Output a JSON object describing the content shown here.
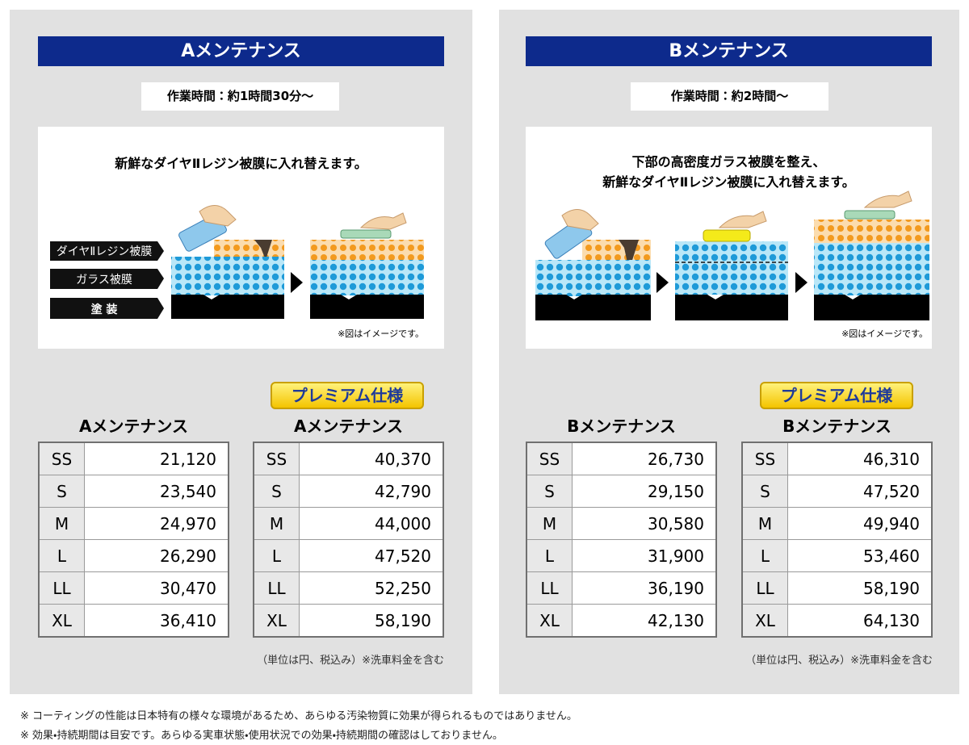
{
  "panels": [
    {
      "title": "Aメンテナンス",
      "time": "作業時間：約1時間30分～",
      "caption_lines": [
        "新鮮なダイヤⅡレジン被膜に入れ替えます。"
      ],
      "layer_labels": [
        "ダイヤⅡレジン被膜",
        "ガラス被膜",
        "塗 装"
      ],
      "image_note": "※図はイメージです。",
      "badge": "プレミアム仕様",
      "tables": [
        {
          "heading": "Aメンテナンス",
          "rows": [
            [
              "SS",
              "21,120"
            ],
            [
              "S",
              "23,540"
            ],
            [
              "M",
              "24,970"
            ],
            [
              "L",
              "26,290"
            ],
            [
              "LL",
              "30,470"
            ],
            [
              "XL",
              "36,410"
            ]
          ]
        },
        {
          "heading": "Aメンテナンス",
          "rows": [
            [
              "SS",
              "40,370"
            ],
            [
              "S",
              "42,790"
            ],
            [
              "M",
              "44,000"
            ],
            [
              "L",
              "47,520"
            ],
            [
              "LL",
              "52,250"
            ],
            [
              "XL",
              "58,190"
            ]
          ]
        }
      ],
      "unit_note": "（単位は円、税込み）※洗車料金を含む"
    },
    {
      "title": "Bメンテナンス",
      "time": "作業時間：約2時間～",
      "caption_lines": [
        "下部の高密度ガラス被膜を整え、",
        "新鮮なダイヤⅡレジン被膜に入れ替えます。"
      ],
      "image_note": "※図はイメージです。",
      "badge": "プレミアム仕様",
      "tables": [
        {
          "heading": "Bメンテナンス",
          "rows": [
            [
              "SS",
              "26,730"
            ],
            [
              "S",
              "29,150"
            ],
            [
              "M",
              "30,580"
            ],
            [
              "L",
              "31,900"
            ],
            [
              "LL",
              "36,190"
            ],
            [
              "XL",
              "42,130"
            ]
          ]
        },
        {
          "heading": "Bメンテナンス",
          "rows": [
            [
              "SS",
              "46,310"
            ],
            [
              "S",
              "47,520"
            ],
            [
              "M",
              "49,940"
            ],
            [
              "L",
              "53,460"
            ],
            [
              "LL",
              "58,190"
            ],
            [
              "XL",
              "64,130"
            ]
          ]
        }
      ],
      "unit_note": "（単位は円、税込み）※洗車料金を含む"
    }
  ],
  "footnotes": [
    "※ コーティングの性能は日本特有の様々な環境があるため、あらゆる汚染物質に効果が得られるものではありません。",
    "※ 効果・持続期間は目安です。あらゆる実車状態・使用状況での効果・持続期間の確認はしておりません。"
  ]
}
